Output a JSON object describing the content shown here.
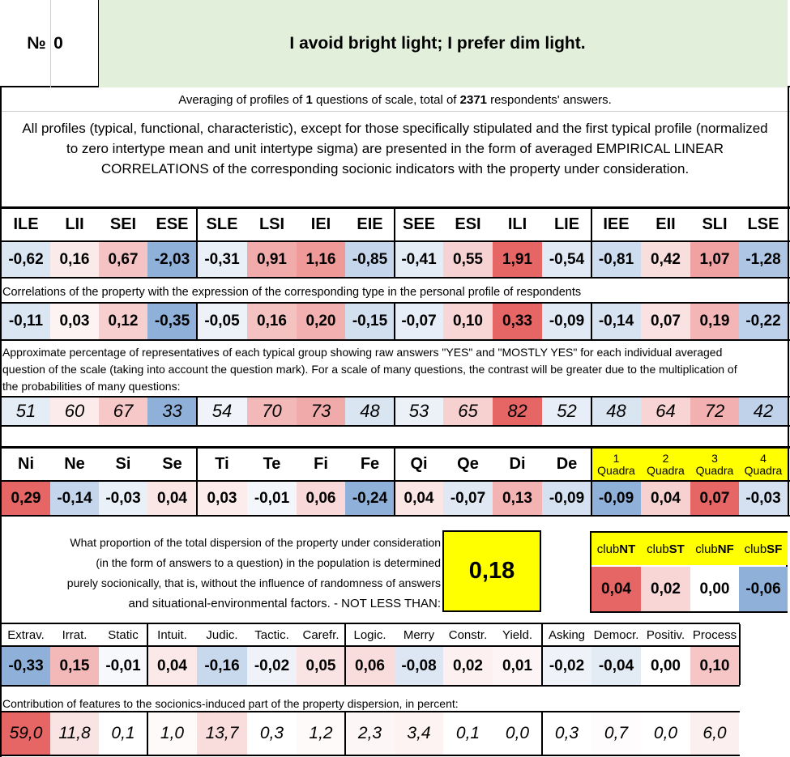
{
  "header": {
    "no_label": "№",
    "no_value": "0",
    "title": "I avoid bright light; I prefer dim light."
  },
  "averaging": {
    "prefix": "Averaging of profiles of ",
    "questions": "1",
    "middle": " questions of scale, total of ",
    "respondents": "2371",
    "suffix": " respondents' answers."
  },
  "intro_text": "All profiles (typical, functional, characteristic), except for those specifically stipulated and the first typical profile (normalized to zero intertype mean and unit intertype sigma) are presented in the form of averaged EMPIRICAL LINEAR CORRELATIONS of the corresponding socionic indicators with the property under consideration.",
  "types": {
    "labels": [
      "ILE",
      "LII",
      "SEI",
      "ESE",
      "SLE",
      "LSI",
      "IEI",
      "EIE",
      "SEE",
      "ESI",
      "ILI",
      "LIE",
      "IEE",
      "EII",
      "SLI",
      "LSE"
    ],
    "profile": [
      "-0,62",
      "0,16",
      "0,67",
      "-2,03",
      "-0,31",
      "0,91",
      "1,16",
      "-0,85",
      "-0,41",
      "0,55",
      "1,91",
      "-0,54",
      "-0,81",
      "0,42",
      "1,07",
      "-1,28"
    ],
    "profile_colors": [
      "#dbe6f3",
      "#fbeaea",
      "#f5c3c3",
      "#8fb0d9",
      "#eaf0f8",
      "#f2abab",
      "#ef9999",
      "#c5d6ec",
      "#e4ecf6",
      "#f7d2d2",
      "#e66565",
      "#e0e9f4",
      "#cddcee",
      "#f9dede",
      "#f0a2a2",
      "#aec5e3"
    ],
    "corr_note": "Correlations of the property with the expression of the corresponding type in the personal profile of respondents",
    "corr": [
      "-0,11",
      "0,03",
      "0,12",
      "-0,35",
      "-0,05",
      "0,16",
      "0,20",
      "-0,15",
      "-0,07",
      "0,10",
      "0,33",
      "-0,09",
      "-0,14",
      "0,07",
      "0,19",
      "-0,22"
    ],
    "corr_colors": [
      "#dbe6f3",
      "#fdf3f3",
      "#f7cfcf",
      "#8fb0d9",
      "#edf2f9",
      "#f5c2c2",
      "#f2b0b0",
      "#d2dfef",
      "#e8eef7",
      "#f8d6d6",
      "#e66565",
      "#e1e9f4",
      "#d7e3f1",
      "#fae2e2",
      "#f3b5b5",
      "#bed1ea"
    ],
    "pct_note": "Approximate percentage of representatives of each typical group showing raw answers \"YES\" and \"MOSTLY YES\" for each individual averaged question of the scale (taking into account the question mark). For a scale of many questions, the contrast will be greater due to the multiplication of the probabilities of many questions:",
    "pct": [
      "51",
      "60",
      "67",
      "33",
      "54",
      "70",
      "73",
      "48",
      "53",
      "65",
      "82",
      "52",
      "48",
      "64",
      "72",
      "42"
    ],
    "pct_colors": [
      "#e4ecf6",
      "#fcebeb",
      "#f6c8c8",
      "#8fb0d9",
      "#f0f4fa",
      "#f3b8b8",
      "#f1aaaa",
      "#dae5f2",
      "#ecf1f8",
      "#f7d0d0",
      "#e66565",
      "#e8eef7",
      "#dae5f2",
      "#f8d4d4",
      "#f2b0b0",
      "#c0d2ea"
    ]
  },
  "functions": {
    "labels": [
      "Ni",
      "Ne",
      "Si",
      "Se",
      "Ti",
      "Te",
      "Fi",
      "Fe",
      "Qi",
      "Qe",
      "Di",
      "De"
    ],
    "values": [
      "0,29",
      "-0,14",
      "-0,03",
      "0,04",
      "0,03",
      "-0,01",
      "0,06",
      "-0,24",
      "0,04",
      "-0,07",
      "0,13",
      "-0,09"
    ],
    "colors": [
      "#e66565",
      "#c5d6ec",
      "#eaf0f8",
      "#fbe6e6",
      "#fcecec",
      "#f3f6fb",
      "#f8d8d8",
      "#8fb0d9",
      "#fbe6e6",
      "#dfe8f3",
      "#f3b3b3",
      "#d5e1f0"
    ]
  },
  "quadras": {
    "labels": [
      {
        "num": "1",
        "word": "Quadra"
      },
      {
        "num": "2",
        "word": "Quadra"
      },
      {
        "num": "3",
        "word": "Quadra"
      },
      {
        "num": "4",
        "word": "Quadra"
      }
    ],
    "values": [
      "-0,09",
      "0,04",
      "0,07",
      "-0,03"
    ],
    "colors": [
      "#8fb0d9",
      "#f7d0d0",
      "#e66565",
      "#d5e1f0"
    ],
    "header_color": "#ffff00"
  },
  "dispersion": {
    "text_lines": [
      "What proportion of the total dispersion of the property under consideration",
      "(in the form of answers to a question) in the population is determined",
      "purely socionically, that is, without the influence of randomness of answers",
      "and situational-environmental factors. - NOT LESS THAN:"
    ],
    "value": "0,18"
  },
  "clubs": {
    "labels": [
      {
        "pre": "club",
        "bold": "NT"
      },
      {
        "pre": "club",
        "bold": "ST"
      },
      {
        "pre": "club",
        "bold": "NF"
      },
      {
        "pre": "club",
        "bold": "SF"
      }
    ],
    "values": [
      "0,04",
      "0,02",
      "0,00",
      "-0,06"
    ],
    "colors": [
      "#e66565",
      "#f8d6d6",
      "#ffffff",
      "#8fb0d9"
    ]
  },
  "traits": {
    "labels": [
      "Extrav.",
      "Irrat.",
      "Static",
      "Intuit.",
      "Judic.",
      "Tactic.",
      "Carefr.",
      "Logic.",
      "Merry",
      "Constr.",
      "Yield.",
      "Asking",
      "Democr.",
      "Positiv.",
      "Process"
    ],
    "values": [
      "-0,33",
      "0,15",
      "-0,01",
      "0,04",
      "-0,16",
      "-0,02",
      "0,05",
      "0,06",
      "-0,08",
      "0,02",
      "0,01",
      "-0,02",
      "-0,04",
      "0,00",
      "0,10"
    ],
    "colors": [
      "#8fb0d9",
      "#f3b8b8",
      "#f6f8fc",
      "#fbe9e9",
      "#c8d8ed",
      "#eff3f9",
      "#fae3e3",
      "#f9dddd",
      "#dde7f3",
      "#fcf0f0",
      "#fdf5f5",
      "#eff3f9",
      "#e3ebf5",
      "#ffffff",
      "#f6c6c6"
    ],
    "contrib_note": "Contribution of features to the socionics-induced part of the property dispersion, in percent:",
    "contrib": [
      "59,0",
      "11,8",
      "0,1",
      "1,0",
      "13,7",
      "0,3",
      "1,2",
      "2,3",
      "3,4",
      "0,1",
      "0,0",
      "0,3",
      "0,7",
      "0,0",
      "6,0"
    ],
    "contrib_colors": [
      "#e66565",
      "#fae3e3",
      "#ffffff",
      "#fefafa",
      "#f9dcdc",
      "#ffffff",
      "#fefafa",
      "#fdf6f6",
      "#fdf3f3",
      "#ffffff",
      "#ffffff",
      "#ffffff",
      "#fefcfc",
      "#ffffff",
      "#fcefef"
    ]
  }
}
